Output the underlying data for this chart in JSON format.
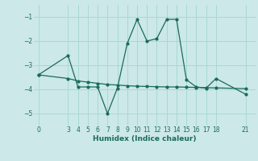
{
  "background_color": "#cce8e8",
  "grid_color": "#a8d8d8",
  "line_color": "#1a6b5a",
  "line1_x": [
    0,
    3,
    4,
    5,
    6,
    7,
    8,
    9,
    10,
    11,
    12,
    13,
    14,
    15,
    16,
    17,
    18,
    21
  ],
  "line1_y": [
    -3.4,
    -3.55,
    -3.65,
    -3.7,
    -3.75,
    -3.8,
    -3.82,
    -3.85,
    -3.87,
    -3.88,
    -3.89,
    -3.9,
    -3.9,
    -3.91,
    -3.92,
    -3.93,
    -3.94,
    -3.97
  ],
  "line2_x": [
    0,
    3,
    4,
    5,
    6,
    7,
    8,
    9,
    10,
    11,
    12,
    13,
    14,
    15,
    16,
    17,
    18,
    21
  ],
  "line2_y": [
    -3.4,
    -2.6,
    -3.9,
    -3.9,
    -3.9,
    -5.0,
    -3.95,
    -2.1,
    -1.1,
    -2.0,
    -1.9,
    -1.1,
    -1.1,
    -3.6,
    -3.9,
    -3.95,
    -3.55,
    -4.2
  ],
  "ylim": [
    -5.5,
    -0.5
  ],
  "xlim": [
    -0.5,
    22
  ],
  "yticks": [
    -5,
    -4,
    -3,
    -2,
    -1
  ],
  "xticks": [
    0,
    3,
    4,
    5,
    6,
    7,
    8,
    9,
    10,
    11,
    12,
    13,
    14,
    15,
    16,
    17,
    18,
    21
  ],
  "xlabel": "Humidex (Indice chaleur)",
  "marker_size": 2.0,
  "line_width": 0.9
}
